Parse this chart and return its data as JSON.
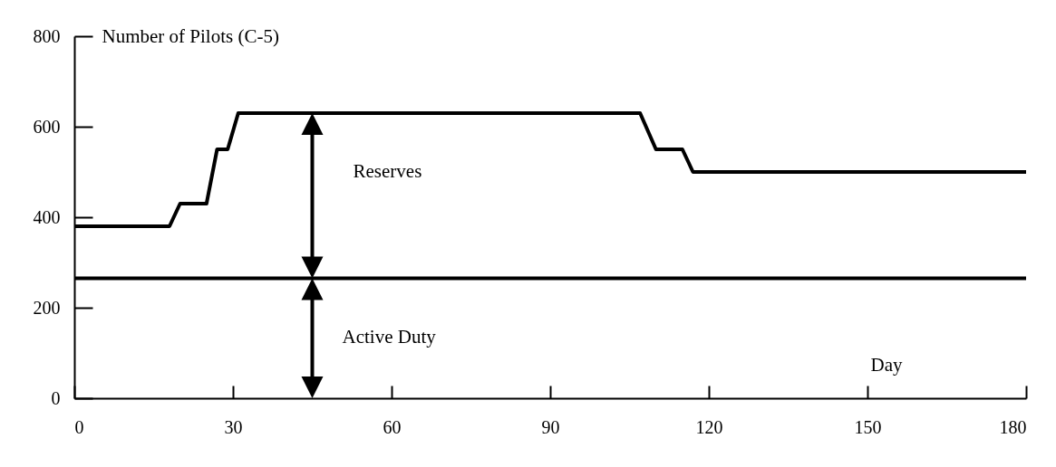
{
  "chart_data": {
    "type": "line",
    "ylabel": "Number of Pilots (C-5)",
    "xlabel": "Day",
    "xlim": [
      0,
      180
    ],
    "xticks": [
      0,
      30,
      60,
      90,
      120,
      150,
      180
    ],
    "ylim": [
      0,
      800
    ],
    "yticks": [
      0,
      200,
      400,
      600,
      800
    ],
    "grid": false,
    "marker": "none",
    "line_style": "solid",
    "series": [
      {
        "color": "#000000",
        "x": [
          0,
          18,
          20,
          25,
          27,
          29,
          31,
          107,
          110,
          115,
          117,
          180
        ],
        "values": [
          380,
          380,
          430,
          430,
          550,
          550,
          630,
          630,
          550,
          550,
          500,
          500
        ]
      },
      {
        "color": "#000000",
        "x": [
          0,
          180
        ],
        "values": [
          265,
          265
        ]
      }
    ],
    "annotations": [
      "Reserves",
      "Active Duty"
    ]
  }
}
